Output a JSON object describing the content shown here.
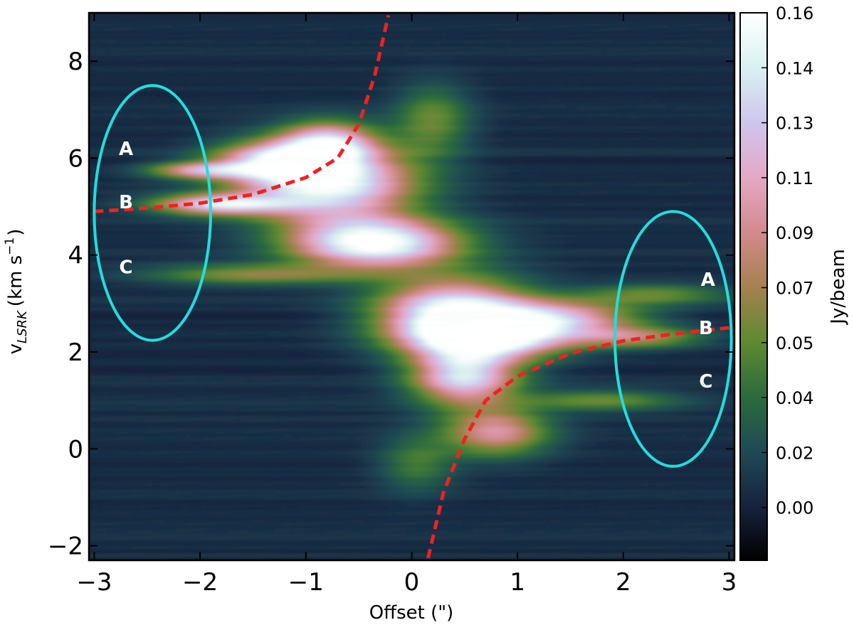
{
  "chart_data": {
    "type": "heatmap",
    "title": "",
    "xlabel": "Offset (\")",
    "ylabel_main": "v",
    "ylabel_sub": "LSRK",
    "ylabel_unit": "(km s",
    "ylabel_exp": "−1",
    "ylabel_close": ")",
    "xlim": [
      -3.05,
      3.05
    ],
    "ylim": [
      -2.3,
      9.0
    ],
    "x_ticks": [
      {
        "value": -3,
        "label": "−3"
      },
      {
        "value": -2,
        "label": "−2"
      },
      {
        "value": -1,
        "label": "−1"
      },
      {
        "value": 0,
        "label": "0"
      },
      {
        "value": 1,
        "label": "1"
      },
      {
        "value": 2,
        "label": "2"
      },
      {
        "value": 3,
        "label": "3"
      }
    ],
    "y_ticks": [
      {
        "value": -2,
        "label": "−2"
      },
      {
        "value": 0,
        "label": "0"
      },
      {
        "value": 2,
        "label": "2"
      },
      {
        "value": 4,
        "label": "4"
      },
      {
        "value": 6,
        "label": "6"
      },
      {
        "value": 8,
        "label": "8"
      }
    ],
    "colorbar": {
      "label": "Jy/beam",
      "vmin": -0.018,
      "vmax": 0.16,
      "ticks": [
        "0.16",
        "0.14",
        "0.13",
        "0.11",
        "0.09",
        "0.07",
        "0.05",
        "0.04",
        "0.02",
        "0.00"
      ],
      "colors": [
        "#000000",
        "#17233f",
        "#1f4a55",
        "#2c6b3d",
        "#5f8a31",
        "#a6814f",
        "#d38a8e",
        "#e4a8c6",
        "#cec6ee",
        "#d9f1f1",
        "#ffffff"
      ]
    },
    "emission_components": [
      {
        "x": -0.75,
        "y": 5.5,
        "peak": 0.15,
        "sx": 0.55,
        "sy": 0.55
      },
      {
        "x": -1.3,
        "y": 5.9,
        "peak": 0.11,
        "sx": 0.4,
        "sy": 0.3
      },
      {
        "x": -0.8,
        "y": 6.3,
        "peak": 0.11,
        "sx": 0.3,
        "sy": 0.3
      },
      {
        "x": -1.8,
        "y": 5.05,
        "peak": 0.13,
        "sx": 0.45,
        "sy": 0.15
      },
      {
        "x": -2.0,
        "y": 5.75,
        "peak": 0.09,
        "sx": 0.35,
        "sy": 0.12
      },
      {
        "x": -0.35,
        "y": 4.25,
        "peak": 0.16,
        "sx": 0.55,
        "sy": 0.35
      },
      {
        "x": -1.5,
        "y": 3.6,
        "peak": 0.06,
        "sx": 0.7,
        "sy": 0.15
      },
      {
        "x": 0.4,
        "y": 2.8,
        "peak": 0.15,
        "sx": 0.5,
        "sy": 0.5
      },
      {
        "x": 0.75,
        "y": 2.3,
        "peak": 0.14,
        "sx": 0.5,
        "sy": 0.3
      },
      {
        "x": 0.5,
        "y": 1.5,
        "peak": 0.13,
        "sx": 0.35,
        "sy": 0.4
      },
      {
        "x": 1.4,
        "y": 2.7,
        "peak": 0.1,
        "sx": 0.55,
        "sy": 0.25
      },
      {
        "x": 2.1,
        "y": 2.3,
        "peak": 0.07,
        "sx": 0.45,
        "sy": 0.15
      },
      {
        "x": 2.3,
        "y": 3.2,
        "peak": 0.05,
        "sx": 0.5,
        "sy": 0.15
      },
      {
        "x": 1.8,
        "y": 1.0,
        "peak": 0.05,
        "sx": 0.5,
        "sy": 0.15
      },
      {
        "x": 0.8,
        "y": 0.35,
        "peak": 0.09,
        "sx": 0.35,
        "sy": 0.35
      },
      {
        "x": 0.2,
        "y": 6.8,
        "peak": 0.05,
        "sx": 0.25,
        "sy": 0.5
      },
      {
        "x": 0.05,
        "y": -0.3,
        "peak": 0.04,
        "sx": 0.25,
        "sy": 0.4
      }
    ],
    "curves": [
      {
        "name": "",
        "color": "#ee2222",
        "dash": true,
        "points": [
          [
            -3.0,
            4.9
          ],
          [
            -2.5,
            4.97
          ],
          [
            -2.0,
            5.07
          ],
          [
            -1.5,
            5.25
          ],
          [
            -1.0,
            5.6
          ],
          [
            -0.7,
            6.0
          ],
          [
            -0.5,
            6.7
          ],
          [
            -0.35,
            7.7
          ],
          [
            -0.22,
            8.95
          ]
        ]
      },
      {
        "name": "",
        "color": "#ee2222",
        "dash": true,
        "points": [
          [
            3.0,
            2.5
          ],
          [
            2.5,
            2.38
          ],
          [
            2.0,
            2.23
          ],
          [
            1.5,
            1.97
          ],
          [
            1.0,
            1.5
          ],
          [
            0.7,
            1.0
          ],
          [
            0.5,
            0.2
          ],
          [
            0.3,
            -0.9
          ],
          [
            0.15,
            -2.3
          ]
        ]
      }
    ],
    "ellipses": [
      {
        "name": "left-ellipse",
        "cx": -2.45,
        "cy": 4.87,
        "rx": 0.55,
        "ry": 2.63,
        "color": "#22dddd"
      },
      {
        "name": "right-ellipse",
        "cx": 2.47,
        "cy": 2.27,
        "rx": 0.55,
        "ry": 2.63,
        "color": "#22dddd"
      }
    ],
    "annotations": [
      {
        "text": "A",
        "x": -2.7,
        "y": 6.2
      },
      {
        "text": "B",
        "x": -2.7,
        "y": 5.1
      },
      {
        "text": "C",
        "x": -2.7,
        "y": 3.75
      },
      {
        "text": "A",
        "x": 2.8,
        "y": 3.5
      },
      {
        "text": "B",
        "x": 2.78,
        "y": 2.5
      },
      {
        "text": "C",
        "x": 2.78,
        "y": 1.4
      }
    ]
  }
}
